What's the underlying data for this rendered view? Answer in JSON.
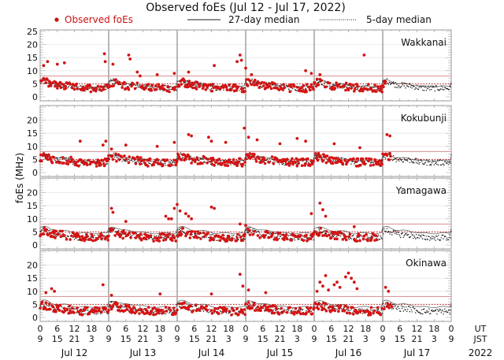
{
  "chart_data": {
    "type": "scatter",
    "title": "Observed foEs (Jul 12 - Jul 17, 2022)",
    "ylabel": "foEs (MHz)",
    "legend": {
      "placement": "top",
      "entries": [
        {
          "label": "Observed foEs",
          "style": "red-dots",
          "color": "#cc1111"
        },
        {
          "label": "27-day median",
          "style": "solid-line",
          "color": "#222222"
        },
        {
          "label": "5-day median",
          "style": "dotted-line",
          "color": "#222222"
        }
      ]
    },
    "ylim": [
      0,
      25
    ],
    "yticks_first": [
      "25",
      "20",
      "15",
      "10",
      "5",
      "0"
    ],
    "yticks_other": [
      "20",
      "15",
      "10",
      "5",
      "0"
    ],
    "xlim_hours": [
      0,
      144
    ],
    "x_ut_ticks": [
      "0",
      "6",
      "12",
      "18",
      "0",
      "6",
      "12",
      "18",
      "0",
      "6",
      "12",
      "18",
      "0",
      "6",
      "12",
      "18",
      "0",
      "6",
      "12",
      "18",
      "0",
      "6",
      "12",
      "18",
      "0"
    ],
    "x_jst_ticks": [
      "9",
      "15",
      "21",
      "3",
      "9",
      "15",
      "21",
      "3",
      "9",
      "15",
      "21",
      "3",
      "9",
      "15",
      "21",
      "3",
      "9",
      "15",
      "21",
      "3",
      "9",
      "15",
      "21",
      "3",
      "9"
    ],
    "ut_label": "UT",
    "jst_label": "JST",
    "days": [
      "Jul 12",
      "Jul 13",
      "Jul 14",
      "Jul 15",
      "Jul 16",
      "Jul 17"
    ],
    "year": "2022",
    "threshold_lines": {
      "upper": 8,
      "lower": 5,
      "upper_color": "#d99a9a",
      "lower_color": "#cc1111"
    },
    "panels": [
      {
        "station": "Wakkanai",
        "median27_base": 5.5,
        "median5_base": 5.0,
        "observed_peaks": [
          [
            1.2,
            12.0
          ],
          [
            2.6,
            13.5
          ],
          [
            6.0,
            12.5
          ],
          [
            8.5,
            13.0
          ],
          [
            22.5,
            16.5
          ],
          [
            22.8,
            13.5
          ],
          [
            25.5,
            12.5
          ],
          [
            31.0,
            16.0
          ],
          [
            31.5,
            14.5
          ],
          [
            34.0,
            9.5
          ],
          [
            35.0,
            8.0
          ],
          [
            41.0,
            8.5
          ],
          [
            47.0,
            9.0
          ],
          [
            52.0,
            9.5
          ],
          [
            61.0,
            12.0
          ],
          [
            69.0,
            13.5
          ],
          [
            70.0,
            16.0
          ],
          [
            70.5,
            14.0
          ],
          [
            72.0,
            11.0
          ],
          [
            74.0,
            8.5
          ],
          [
            93.0,
            10.0
          ],
          [
            95.0,
            9.0
          ],
          [
            98.0,
            8.5
          ],
          [
            113.5,
            16.0
          ]
        ],
        "observed_data_until_hours": 121
      },
      {
        "station": "Kokubunji",
        "median27_base": 6.0,
        "median5_base": 5.5,
        "observed_peaks": [
          [
            14.0,
            12.0
          ],
          [
            22.0,
            10.5
          ],
          [
            23.0,
            12.0
          ],
          [
            25.0,
            9.0
          ],
          [
            30.0,
            10.5
          ],
          [
            41.0,
            10.0
          ],
          [
            47.0,
            11.5
          ],
          [
            52.0,
            14.5
          ],
          [
            53.0,
            14.0
          ],
          [
            59.0,
            13.5
          ],
          [
            60.0,
            12.0
          ],
          [
            65.0,
            11.5
          ],
          [
            71.5,
            17.0
          ],
          [
            73.0,
            13.5
          ],
          [
            76.0,
            12.5
          ],
          [
            84.0,
            11.0
          ],
          [
            90.0,
            13.0
          ],
          [
            93.0,
            12.0
          ],
          [
            103.0,
            11.0
          ],
          [
            112.0,
            9.5
          ],
          [
            121.5,
            14.5
          ],
          [
            122.5,
            14.0
          ]
        ],
        "observed_data_until_hours": 123
      },
      {
        "station": "Yamagawa",
        "median27_base": 6.0,
        "median5_base": 4.5,
        "observed_peaks": [
          [
            25.0,
            14.0
          ],
          [
            25.5,
            12.5
          ],
          [
            30.0,
            9.0
          ],
          [
            44.0,
            11.0
          ],
          [
            45.0,
            10.0
          ],
          [
            46.0,
            10.0
          ],
          [
            47.0,
            14.0
          ],
          [
            48.0,
            15.5
          ],
          [
            49.0,
            13.0
          ],
          [
            51.0,
            12.0
          ],
          [
            52.0,
            11.0
          ],
          [
            53.0,
            10.0
          ],
          [
            60.0,
            14.5
          ],
          [
            61.0,
            14.0
          ],
          [
            70.0,
            8.0
          ],
          [
            72.0,
            7.5
          ],
          [
            95.0,
            12.0
          ],
          [
            98.0,
            16.0
          ],
          [
            99.0,
            13.5
          ],
          [
            100.0,
            11.0
          ],
          [
            110.0,
            7.0
          ]
        ],
        "observed_data_until_hours": 118
      },
      {
        "station": "Okinawa",
        "median27_base": 5.5,
        "median5_base": 4.0,
        "observed_peaks": [
          [
            2.0,
            9.5
          ],
          [
            4.0,
            11.0
          ],
          [
            5.0,
            10.0
          ],
          [
            22.0,
            12.5
          ],
          [
            25.0,
            8.5
          ],
          [
            42.0,
            9.0
          ],
          [
            60.0,
            9.0
          ],
          [
            70.0,
            16.5
          ],
          [
            71.0,
            12.0
          ],
          [
            73.0,
            10.5
          ],
          [
            79.0,
            9.5
          ],
          [
            97.0,
            10.0
          ],
          [
            98.0,
            13.5
          ],
          [
            99.0,
            12.0
          ],
          [
            100.0,
            16.0
          ],
          [
            101.0,
            10.5
          ],
          [
            103.0,
            12.5
          ],
          [
            104.0,
            13.5
          ],
          [
            105.0,
            11.5
          ],
          [
            107.0,
            15.5
          ],
          [
            108.0,
            17.0
          ],
          [
            109.0,
            15.0
          ],
          [
            110.0,
            13.5
          ],
          [
            111.0,
            11.0
          ],
          [
            121.0,
            11.5
          ],
          [
            122.0,
            10.0
          ]
        ],
        "observed_data_until_hours": 124
      }
    ]
  }
}
